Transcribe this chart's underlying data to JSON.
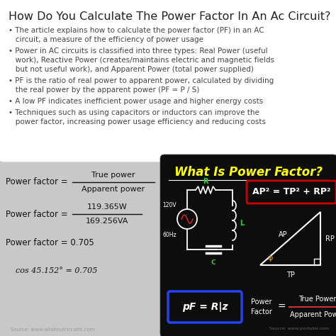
{
  "title": "How Do You Calculate The Power Factor In An Ac Circuit?",
  "title_fontsize": 11.5,
  "bullets": [
    "• The article explains how to calculate the power factor (PF) in an AC\n   circuit, a measure of the efficiency of power usage",
    "• Power in AC circuits is classified into three types: Real Power (useful\n   work), Reactive Power (creates/maintains electric and magnetic fields\n   but not useful work), and Apparent Power (total power supplied)",
    "• PF is the ratio of real power to apparent power, calculated by dividing\n   the real power by the apparent power (PF = P / S)",
    "• A low PF indicates inefficient power usage and higher energy costs",
    "• Techniques such as using capacitors or inductors can improve the\n   power factor, increasing power usage efficiency and reducing costs"
  ],
  "bullet_fontsize": 7.5,
  "formula1_label": "Power factor = ",
  "formula1_num": "True power",
  "formula1_den": "Apparent power",
  "formula2_label": "Power factor = ",
  "formula2_num": "119.365W",
  "formula2_den": "169.256VA",
  "formula3": "Power factor = 0.705",
  "formula4": "cos 45.152° = 0.705",
  "source": "Source: www.allaboutcircuits.com",
  "right_title": "What Is Power Factor?",
  "right_title_color": "#ffff00",
  "right_eq1": "AP² = TP² + RP²",
  "right_eq2": "pF = R|z",
  "right_eq3_label": "Power\nFactor",
  "right_eq3_num": "True Power",
  "right_eq3_den": "Apparent Power",
  "source2": "Source: www.youtube.com",
  "bg_color": "#c8c8c8"
}
